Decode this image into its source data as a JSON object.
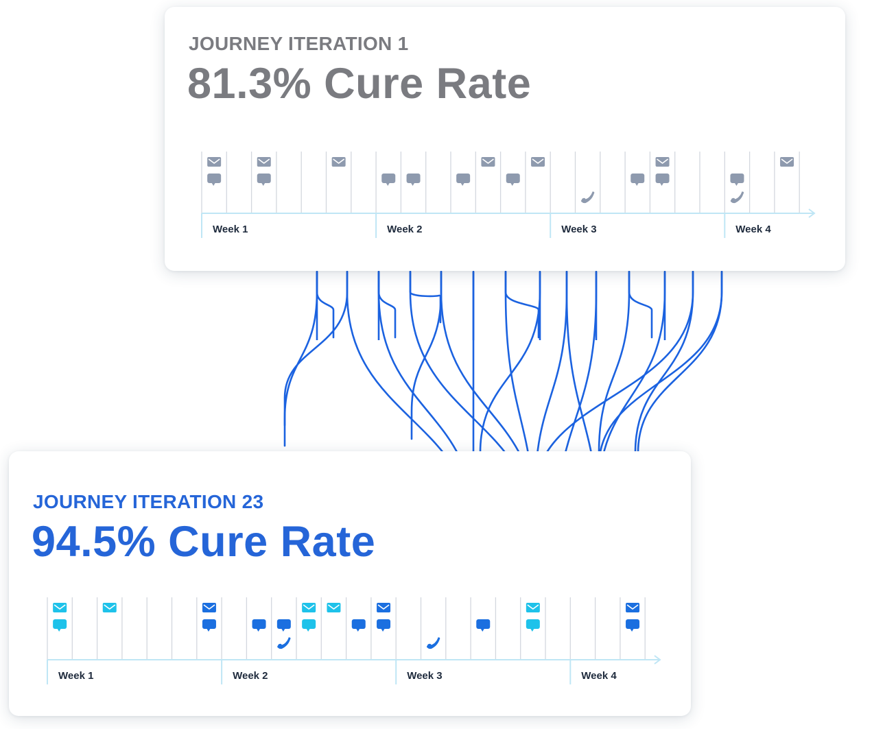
{
  "iteration_1": {
    "eyebrow": "JOURNEY ITERATION 1",
    "headline": "81.3% Cure Rate",
    "weeks": [
      "Week 1",
      "Week 2",
      "Week 3",
      "Week 4"
    ],
    "colors": {
      "icon": "#8e9aae",
      "axis": "#bfe6f5",
      "grid": "#d3d7de",
      "label": "#1e2a3c"
    },
    "days": [
      {
        "day": 1,
        "icons": [
          "email-icon",
          "chat-icon"
        ]
      },
      {
        "day": 3,
        "icons": [
          "email-icon",
          "chat-icon"
        ]
      },
      {
        "day": 6,
        "icons": [
          "email-icon"
        ]
      },
      {
        "day": 8,
        "icons": [
          "chat-icon"
        ]
      },
      {
        "day": 9,
        "icons": [
          "chat-icon"
        ]
      },
      {
        "day": 11,
        "icons": [
          "chat-icon"
        ]
      },
      {
        "day": 12,
        "icons": [
          "email-icon"
        ]
      },
      {
        "day": 13,
        "icons": [
          "chat-icon"
        ]
      },
      {
        "day": 14,
        "icons": [
          "email-icon"
        ]
      },
      {
        "day": 16,
        "icons": [
          "phone-icon"
        ]
      },
      {
        "day": 18,
        "icons": [
          "chat-icon"
        ]
      },
      {
        "day": 19,
        "icons": [
          "email-icon",
          "chat-icon"
        ]
      },
      {
        "day": 22,
        "icons": [
          "chat-icon",
          "phone-icon"
        ]
      },
      {
        "day": 24,
        "icons": [
          "email-icon"
        ]
      }
    ]
  },
  "iteration_23": {
    "eyebrow": "JOURNEY ITERATION 23",
    "headline": "94.5% Cure Rate",
    "weeks": [
      "Week 1",
      "Week 2",
      "Week 3",
      "Week 4"
    ],
    "colors": {
      "email": "#1b6fe0",
      "email_alt": "#1ec2ea",
      "chat": "#1b6fe0",
      "chat_alt": "#1ec2ea",
      "phone": "#1b6fe0",
      "axis": "#bfe6f5",
      "grid": "#d3d7de",
      "label": "#1e2a3c"
    },
    "days": [
      {
        "day": 1,
        "icons": [
          "email-icon-alt",
          "chat-icon-alt"
        ]
      },
      {
        "day": 3,
        "icons": [
          "email-icon-alt"
        ]
      },
      {
        "day": 7,
        "icons": [
          "email-icon",
          "chat-icon"
        ]
      },
      {
        "day": 9,
        "icons": [
          "chat-icon"
        ]
      },
      {
        "day": 10,
        "icons": [
          "chat-icon",
          "phone-icon"
        ]
      },
      {
        "day": 11,
        "icons": [
          "email-icon-alt",
          "chat-icon-alt"
        ]
      },
      {
        "day": 12,
        "icons": [
          "email-icon-alt"
        ]
      },
      {
        "day": 13,
        "icons": [
          "chat-icon"
        ]
      },
      {
        "day": 14,
        "icons": [
          "email-icon",
          "chat-icon"
        ]
      },
      {
        "day": 16,
        "icons": [
          "phone-icon"
        ]
      },
      {
        "day": 18,
        "icons": [
          "chat-icon"
        ]
      },
      {
        "day": 20,
        "icons": [
          "email-icon-alt",
          "chat-icon-alt"
        ]
      },
      {
        "day": 24,
        "icons": [
          "email-icon",
          "chat-icon"
        ]
      }
    ]
  },
  "flows": {
    "color": "#1b62e0",
    "count": 22
  }
}
